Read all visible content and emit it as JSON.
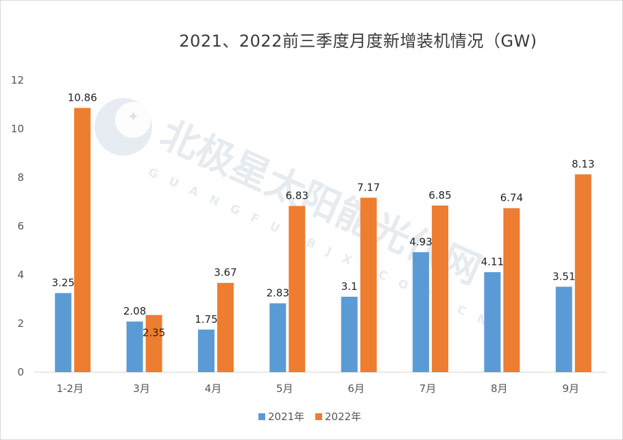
{
  "chart_data": {
    "type": "bar",
    "title": "2021、2022前三季度月度新增装机情况（GW)",
    "categories": [
      "1-2月",
      "3月",
      "4月",
      "5月",
      "6月",
      "7月",
      "8月",
      "9月"
    ],
    "series": [
      {
        "name": "2021年",
        "color": "#5b9bd5",
        "values": [
          3.25,
          2.08,
          1.75,
          2.83,
          3.1,
          4.93,
          4.11,
          3.51
        ]
      },
      {
        "name": "2022年",
        "color": "#ed7d31",
        "values": [
          10.86,
          2.35,
          3.67,
          6.83,
          7.17,
          6.85,
          6.74,
          8.13
        ]
      }
    ],
    "yticks": [
      0,
      2,
      4,
      6,
      8,
      10,
      12
    ],
    "ylim": [
      0,
      12
    ],
    "xlabel": "",
    "ylabel": "",
    "legend_position": "bottom"
  },
  "watermark": {
    "main_text": "北极星太阳能光伏网",
    "sub_text": "GUANGFU.BJX.COM.CN"
  }
}
